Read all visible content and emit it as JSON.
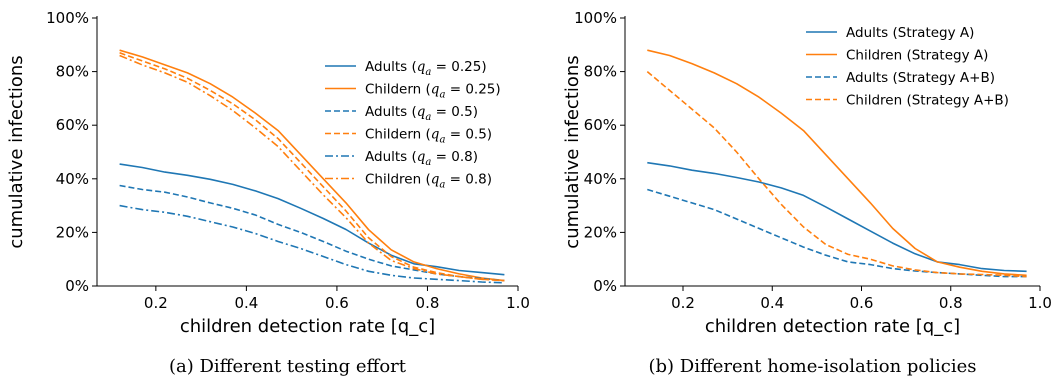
{
  "chart_data": [
    {
      "type": "line",
      "caption": "(a) Different testing effort",
      "xlabel": "children detection rate [q_c]",
      "ylabel": "cumulative infections",
      "xlim": [
        0.07,
        1.0
      ],
      "ylim": [
        0,
        100
      ],
      "xticks": [
        "0.2",
        "0.4",
        "0.6",
        "0.8",
        "1.0"
      ],
      "yticks": [
        "0%",
        "20%",
        "40%",
        "60%",
        "80%",
        "100%"
      ],
      "legend_position": "right",
      "x": [
        0.12,
        0.17,
        0.22,
        0.27,
        0.32,
        0.37,
        0.42,
        0.47,
        0.52,
        0.57,
        0.62,
        0.67,
        0.72,
        0.77,
        0.82,
        0.87,
        0.92,
        0.97
      ],
      "series": [
        {
          "name": "Adults (q_a = 0.25)",
          "color": "#1f77b4",
          "dash": "solid",
          "values": [
            45.5,
            44.2,
            42.5,
            41.3,
            39.8,
            37.9,
            35.5,
            32.6,
            29.0,
            25.2,
            21.1,
            16.0,
            11.5,
            8.3,
            7.2,
            5.8,
            5.0,
            4.2
          ]
        },
        {
          "name": "Childern (q_a = 0.25)",
          "color": "#ff7f0e",
          "dash": "solid",
          "values": [
            88,
            85.5,
            82.5,
            79.5,
            75.5,
            70.5,
            64.5,
            58,
            49,
            40,
            31,
            21,
            13.5,
            9,
            6.5,
            4.5,
            3,
            2
          ]
        },
        {
          "name": "Adults (q_a = 0.5)",
          "color": "#1f77b4",
          "dash": "dashed",
          "values": [
            37.5,
            36.0,
            35.0,
            33.2,
            31.0,
            29.0,
            26.5,
            23.0,
            20.0,
            16.6,
            13.0,
            10.0,
            7.5,
            6.0,
            4.5,
            3.5,
            2.8,
            2.0
          ]
        },
        {
          "name": "Childern (q_a = 0.5)",
          "color": "#ff7f0e",
          "dash": "dashed",
          "values": [
            87,
            84,
            81,
            77.5,
            73,
            68,
            62,
            55,
            46,
            37,
            28,
            18,
            11,
            7,
            5,
            3.5,
            2.5,
            2
          ]
        },
        {
          "name": "Adults (q_a = 0.8)",
          "color": "#1f77b4",
          "dash": "dashdot",
          "values": [
            30,
            28.5,
            27.5,
            26,
            24,
            22,
            19.6,
            16.6,
            14,
            11,
            8,
            5.5,
            4,
            3,
            2.5,
            2,
            1.5,
            1.2
          ]
        },
        {
          "name": "Children (q_a = 0.8)",
          "color": "#ff7f0e",
          "dash": "dashdot",
          "values": [
            86,
            82.5,
            79.5,
            76,
            71,
            65.5,
            59,
            52,
            43,
            34,
            25.5,
            16,
            9.5,
            6.5,
            4.5,
            3.5,
            2.5,
            2
          ]
        }
      ]
    },
    {
      "type": "line",
      "caption": "(b) Different home-isolation policies",
      "xlabel": "children detection rate [q_c]",
      "ylabel": "cumulative infections",
      "xlim": [
        0.07,
        1.0
      ],
      "ylim": [
        0,
        100
      ],
      "xticks": [
        "0.2",
        "0.4",
        "0.6",
        "0.8",
        "1.0"
      ],
      "yticks": [
        "0%",
        "20%",
        "40%",
        "60%",
        "80%",
        "100%"
      ],
      "legend_position": "top-right",
      "x": [
        0.12,
        0.17,
        0.22,
        0.27,
        0.32,
        0.37,
        0.42,
        0.47,
        0.52,
        0.57,
        0.62,
        0.67,
        0.72,
        0.77,
        0.82,
        0.87,
        0.92,
        0.97
      ],
      "series": [
        {
          "name": "Adults (Strategy A)",
          "color": "#1f77b4",
          "dash": "solid",
          "values": [
            46,
            44.8,
            43.2,
            42,
            40.5,
            38.8,
            36.6,
            33.8,
            29.5,
            25,
            20.5,
            16,
            12,
            9,
            8,
            6.5,
            5.8,
            5.5
          ]
        },
        {
          "name": "Children (Strategy A)",
          "color": "#ff7f0e",
          "dash": "solid",
          "values": [
            88,
            86,
            83,
            79.5,
            75.5,
            70.5,
            64.5,
            58,
            49,
            40,
            31,
            21.5,
            14,
            9,
            7,
            5.5,
            4.5,
            4
          ]
        },
        {
          "name": "Adults (Strategy A+B)",
          "color": "#1f77b4",
          "dash": "dashed",
          "values": [
            36,
            33.5,
            31,
            28.5,
            25,
            21.5,
            18,
            14.5,
            11.5,
            9,
            8,
            6.5,
            5.6,
            5,
            4.5,
            4,
            3.5,
            3.5
          ]
        },
        {
          "name": "Children (Strategy A+B)",
          "color": "#ff7f0e",
          "dash": "dashed",
          "values": [
            80,
            73,
            66,
            59,
            50,
            40,
            30.5,
            22,
            15.5,
            11.8,
            10,
            7.5,
            6,
            5,
            4.5,
            4.3,
            4,
            3.5
          ]
        }
      ]
    }
  ]
}
